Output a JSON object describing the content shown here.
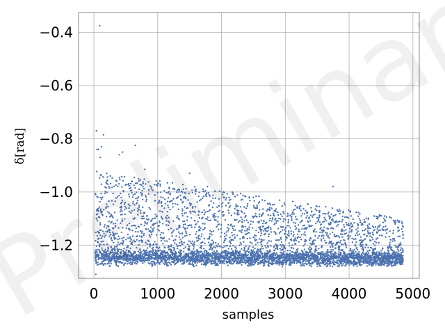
{
  "chart_data": {
    "type": "scatter",
    "title": "",
    "xlabel": "samples",
    "ylabel": "δ[rad]",
    "xlim": [
      -240,
      5100
    ],
    "ylim": [
      -1.325,
      -0.325
    ],
    "xticks": [
      0,
      1000,
      2000,
      3000,
      4000,
      5000
    ],
    "xtick_labels": [
      "0",
      "1000",
      "2000",
      "3000",
      "4000",
      "5000"
    ],
    "yticks": [
      -0.4,
      -0.6,
      -0.8,
      -1.0,
      -1.2
    ],
    "ytick_labels": [
      "−0.4",
      "−0.6",
      "−0.8",
      "−1.0",
      "−1.2"
    ],
    "grid": true,
    "watermark": "Preliminary",
    "marker_color": "#4c72b0",
    "series": [
      {
        "description_points": [
          [
            30,
            -1.31
          ],
          [
            40,
            -0.77
          ],
          [
            50,
            -0.84
          ],
          [
            70,
            -0.84
          ],
          [
            90,
            -0.375
          ],
          [
            100,
            -0.87
          ],
          [
            120,
            -0.83
          ],
          [
            150,
            -0.785
          ],
          [
            200,
            -0.93
          ],
          [
            400,
            -0.86
          ],
          [
            450,
            -0.85
          ],
          [
            600,
            -0.96
          ],
          [
            650,
            -0.825
          ],
          [
            800,
            -0.915
          ],
          [
            1500,
            -0.93
          ],
          [
            1780,
            -0.98
          ],
          [
            3750,
            -0.98
          ]
        ],
        "n_samples": 4850,
        "band_floor": -1.27
      }
    ]
  }
}
